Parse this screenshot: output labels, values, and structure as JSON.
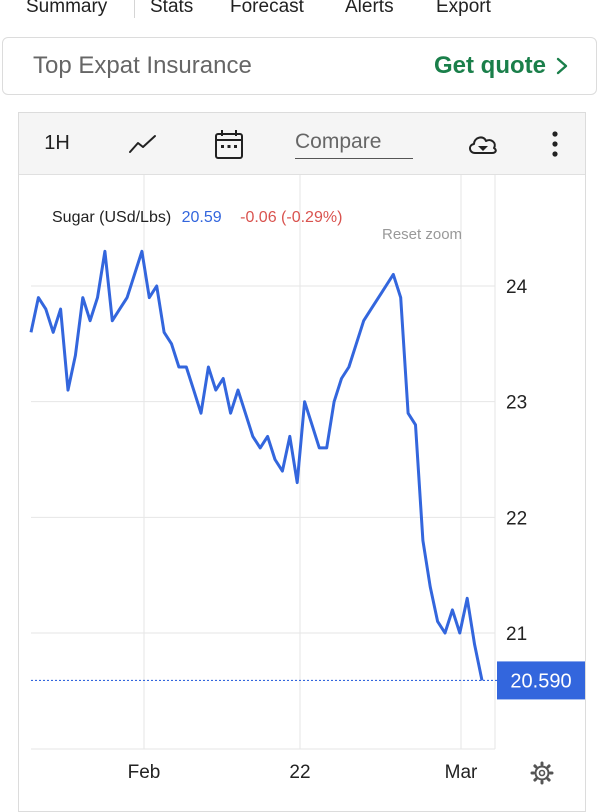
{
  "tabs": [
    {
      "label": "Summary",
      "active": true
    },
    {
      "label": "Stats",
      "active": false
    },
    {
      "label": "Forecast",
      "active": false
    },
    {
      "label": "Alerts",
      "active": false
    },
    {
      "label": "Export",
      "active": false
    }
  ],
  "ad": {
    "text": "Top Expat Insurance",
    "cta": "Get quote"
  },
  "toolbar": {
    "range": "1H",
    "compare_placeholder": "Compare",
    "icons": [
      "line-chart-icon",
      "calendar-icon",
      "cloud-download-icon",
      "more-vertical-icon"
    ]
  },
  "legend": {
    "name": "Sugar (USd/Lbs)",
    "value": "20.59",
    "change": "-0.06 (-0.29%)",
    "reset_zoom": "Reset zoom"
  },
  "price_label": "20.590",
  "colors": {
    "line": "#3366dd",
    "negative": "#d9534f",
    "accent_green": "#1a7f4a",
    "price_tag": "#3366dd"
  },
  "chart_data": {
    "type": "line",
    "title": "",
    "xlabel": "",
    "ylabel": "",
    "ylim": [
      20.1,
      25.0
    ],
    "yticks": [
      21,
      22,
      23,
      24
    ],
    "xticks": [
      "Feb",
      "22",
      "Mar"
    ],
    "series": [
      {
        "name": "Sugar (USd/Lbs)",
        "x": [
          0,
          0.7,
          1.4,
          2.1,
          2.8,
          3.5,
          4.2,
          4.9,
          5.6,
          6.3,
          7.0,
          7.7,
          8.4,
          9.1,
          9.8,
          10.5,
          11.2,
          11.9,
          12.6,
          13.3,
          14.0,
          14.7,
          15.4,
          16.1,
          16.8,
          17.5,
          18.2,
          18.9,
          19.6,
          20.3,
          21.0,
          21.7,
          22.4,
          23.1,
          23.8,
          24.5,
          25.2,
          25.9,
          26.6,
          27.3,
          28.0,
          28.7,
          29.4,
          30.1,
          30.8,
          31.5,
          32.2,
          32.9,
          33.6,
          34.3,
          35.0,
          35.7,
          36.4,
          37.1,
          37.8,
          38.5,
          39.2,
          39.9,
          40.6,
          41.3,
          42.0,
          42.7
        ],
        "values": [
          23.6,
          23.9,
          23.8,
          23.6,
          23.8,
          23.1,
          23.4,
          23.9,
          23.7,
          23.9,
          24.3,
          23.7,
          23.8,
          23.9,
          24.1,
          24.3,
          23.9,
          24.0,
          23.6,
          23.5,
          23.3,
          23.3,
          23.1,
          22.9,
          23.3,
          23.1,
          23.2,
          22.9,
          23.1,
          22.9,
          22.7,
          22.6,
          22.7,
          22.5,
          22.4,
          22.7,
          22.3,
          23.0,
          22.8,
          22.6,
          22.6,
          23.0,
          23.2,
          23.3,
          23.5,
          23.7,
          23.8,
          23.9,
          24.0,
          24.1,
          23.9,
          22.9,
          22.8,
          21.8,
          21.4,
          21.1,
          21.0,
          21.2,
          21.0,
          21.3,
          20.9,
          20.59
        ]
      }
    ],
    "last_value": 20.59,
    "grid": true,
    "legend_position": "top-left"
  }
}
